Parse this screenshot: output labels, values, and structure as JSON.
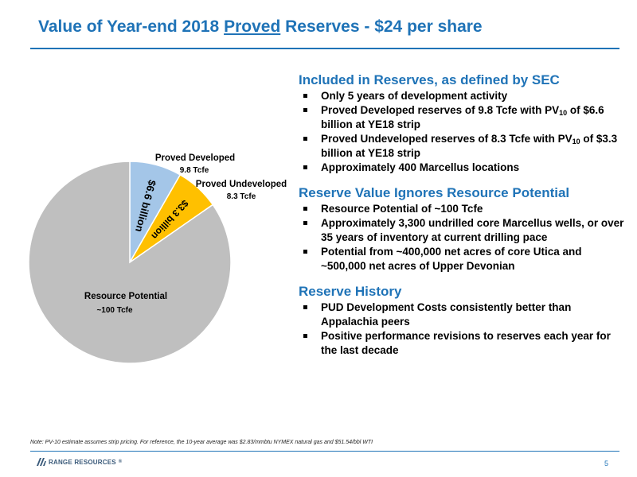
{
  "header": {
    "title_prefix": "Value of Year-end 2018 ",
    "title_underlined": "Proved",
    "title_suffix": " Reserves - $24 per share"
  },
  "chart_data": {
    "type": "pie",
    "title": "",
    "slices": [
      {
        "name": "Proved Developed",
        "sublabel": "9.8 Tcfe",
        "value": 9.8,
        "inner_label": "$6.6 billion",
        "color": "#a4c6e8"
      },
      {
        "name": "Proved Undeveloped",
        "sublabel": "8.3 Tcfe",
        "value": 8.3,
        "inner_label": "$3.3 billion",
        "color": "#ffc000"
      },
      {
        "name": "Resource Potential",
        "sublabel": "~100 Tcfe",
        "value": 100,
        "inner_label": "",
        "color": "#bfbfbf"
      }
    ]
  },
  "sections": [
    {
      "heading": "Included in Reserves, as defined by SEC",
      "bullets": [
        "Only 5 years of development activity",
        "Proved Developed reserves of 9.8 Tcfe with PV10 of $6.6 billion at YE18 strip",
        "Proved Undeveloped reserves of 8.3 Tcfe with PV10 of $3.3 billion at YE18 strip",
        "Approximately 400 Marcellus locations"
      ]
    },
    {
      "heading": "Reserve Value Ignores Resource Potential",
      "bullets": [
        "Resource Potential of ~100 Tcfe",
        "Approximately 3,300 undrilled core Marcellus wells, or over 35 years of inventory at current drilling pace",
        "Potential from ~400,000 net acres of core Utica and ~500,000 net acres of Upper Devonian"
      ]
    },
    {
      "heading": "Reserve History",
      "bullets": [
        "PUD Development Costs consistently better than Appalachia peers",
        "Positive performance revisions to reserves each year for the last decade"
      ]
    }
  ],
  "footer": {
    "note": "Note: PV-10 estimate assumes strip pricing. For reference, the 10-year average was $2.83/mmbtu NYMEX natural gas and $51.54/bbl WTI",
    "logo_text": "RANGE RESOURCES",
    "logo_mark": "®",
    "page_number": "5"
  }
}
